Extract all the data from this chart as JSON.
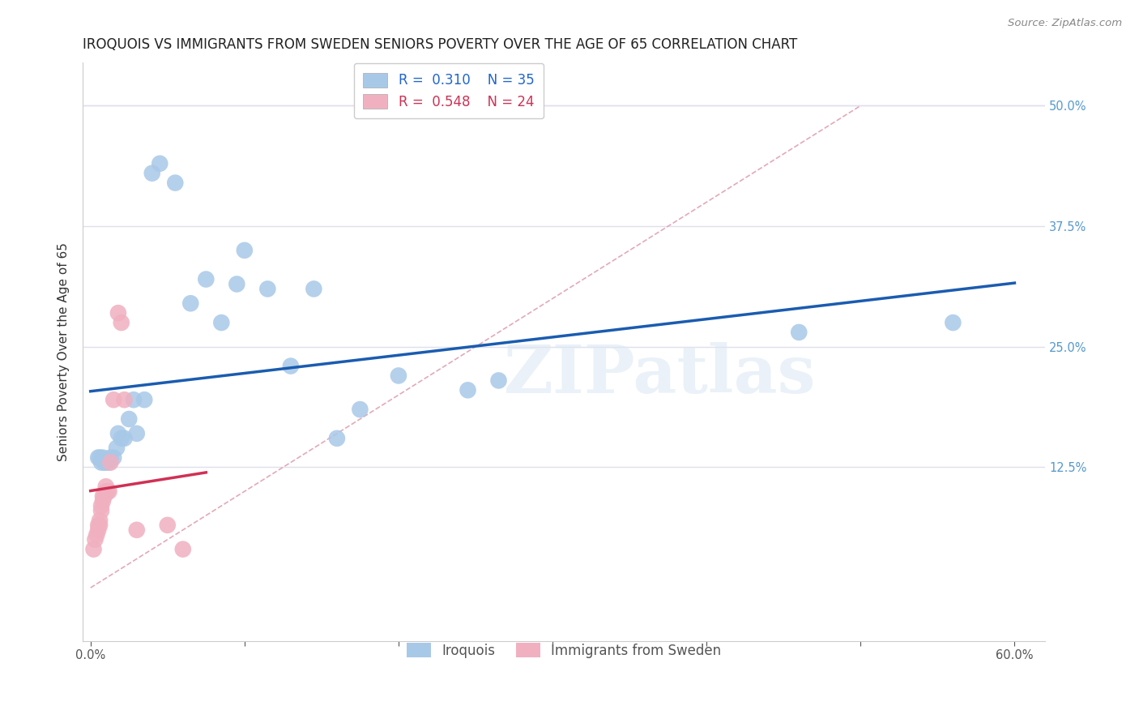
{
  "title": "IROQUOIS VS IMMIGRANTS FROM SWEDEN SENIORS POVERTY OVER THE AGE OF 65 CORRELATION CHART",
  "source": "Source: ZipAtlas.com",
  "ylabel": "Seniors Poverty Over the Age of 65",
  "xlim": [
    -0.005,
    0.62
  ],
  "ylim": [
    -0.055,
    0.545
  ],
  "xtick_positions": [
    0.0,
    0.1,
    0.2,
    0.3,
    0.4,
    0.5,
    0.6
  ],
  "xticklabels": [
    "0.0%",
    "",
    "",
    "",
    "",
    "",
    "60.0%"
  ],
  "ytick_positions": [
    0.125,
    0.25,
    0.375,
    0.5
  ],
  "ytick_labels": [
    "12.5%",
    "25.0%",
    "37.5%",
    "50.0%"
  ],
  "blue_R": 0.31,
  "blue_N": 35,
  "pink_R": 0.548,
  "pink_N": 24,
  "blue_color": "#a8c8e8",
  "pink_color": "#f0b0c0",
  "blue_line_color": "#1a5cb0",
  "pink_line_color": "#d03055",
  "diag_color": "#e0a0b0",
  "grid_color": "#e0e0ec",
  "background_color": "#ffffff",
  "watermark": "ZIPatlas",
  "blue_x": [
    0.005,
    0.006,
    0.007,
    0.008,
    0.009,
    0.01,
    0.012,
    0.013,
    0.015,
    0.017,
    0.018,
    0.02,
    0.022,
    0.025,
    0.028,
    0.03,
    0.035,
    0.04,
    0.045,
    0.055,
    0.065,
    0.075,
    0.085,
    0.095,
    0.1,
    0.115,
    0.13,
    0.145,
    0.16,
    0.175,
    0.2,
    0.245,
    0.265,
    0.46,
    0.56
  ],
  "blue_y": [
    0.135,
    0.135,
    0.13,
    0.135,
    0.13,
    0.13,
    0.13,
    0.135,
    0.135,
    0.145,
    0.16,
    0.155,
    0.155,
    0.175,
    0.195,
    0.16,
    0.195,
    0.43,
    0.44,
    0.42,
    0.295,
    0.32,
    0.275,
    0.315,
    0.35,
    0.31,
    0.23,
    0.31,
    0.155,
    0.185,
    0.22,
    0.205,
    0.215,
    0.265,
    0.275
  ],
  "pink_x": [
    0.002,
    0.003,
    0.004,
    0.005,
    0.005,
    0.006,
    0.006,
    0.007,
    0.007,
    0.008,
    0.008,
    0.009,
    0.01,
    0.01,
    0.011,
    0.012,
    0.013,
    0.015,
    0.018,
    0.02,
    0.022,
    0.03,
    0.05,
    0.06
  ],
  "pink_y": [
    0.04,
    0.05,
    0.055,
    0.06,
    0.065,
    0.065,
    0.07,
    0.08,
    0.085,
    0.09,
    0.095,
    0.095,
    0.1,
    0.105,
    0.1,
    0.1,
    0.13,
    0.195,
    0.285,
    0.275,
    0.195,
    0.06,
    0.065,
    0.04
  ],
  "legend_blue_label": "Iroquois",
  "legend_pink_label": "Immigrants from Sweden",
  "title_fontsize": 12,
  "axis_label_fontsize": 11,
  "tick_fontsize": 10.5,
  "legend_fontsize": 12
}
